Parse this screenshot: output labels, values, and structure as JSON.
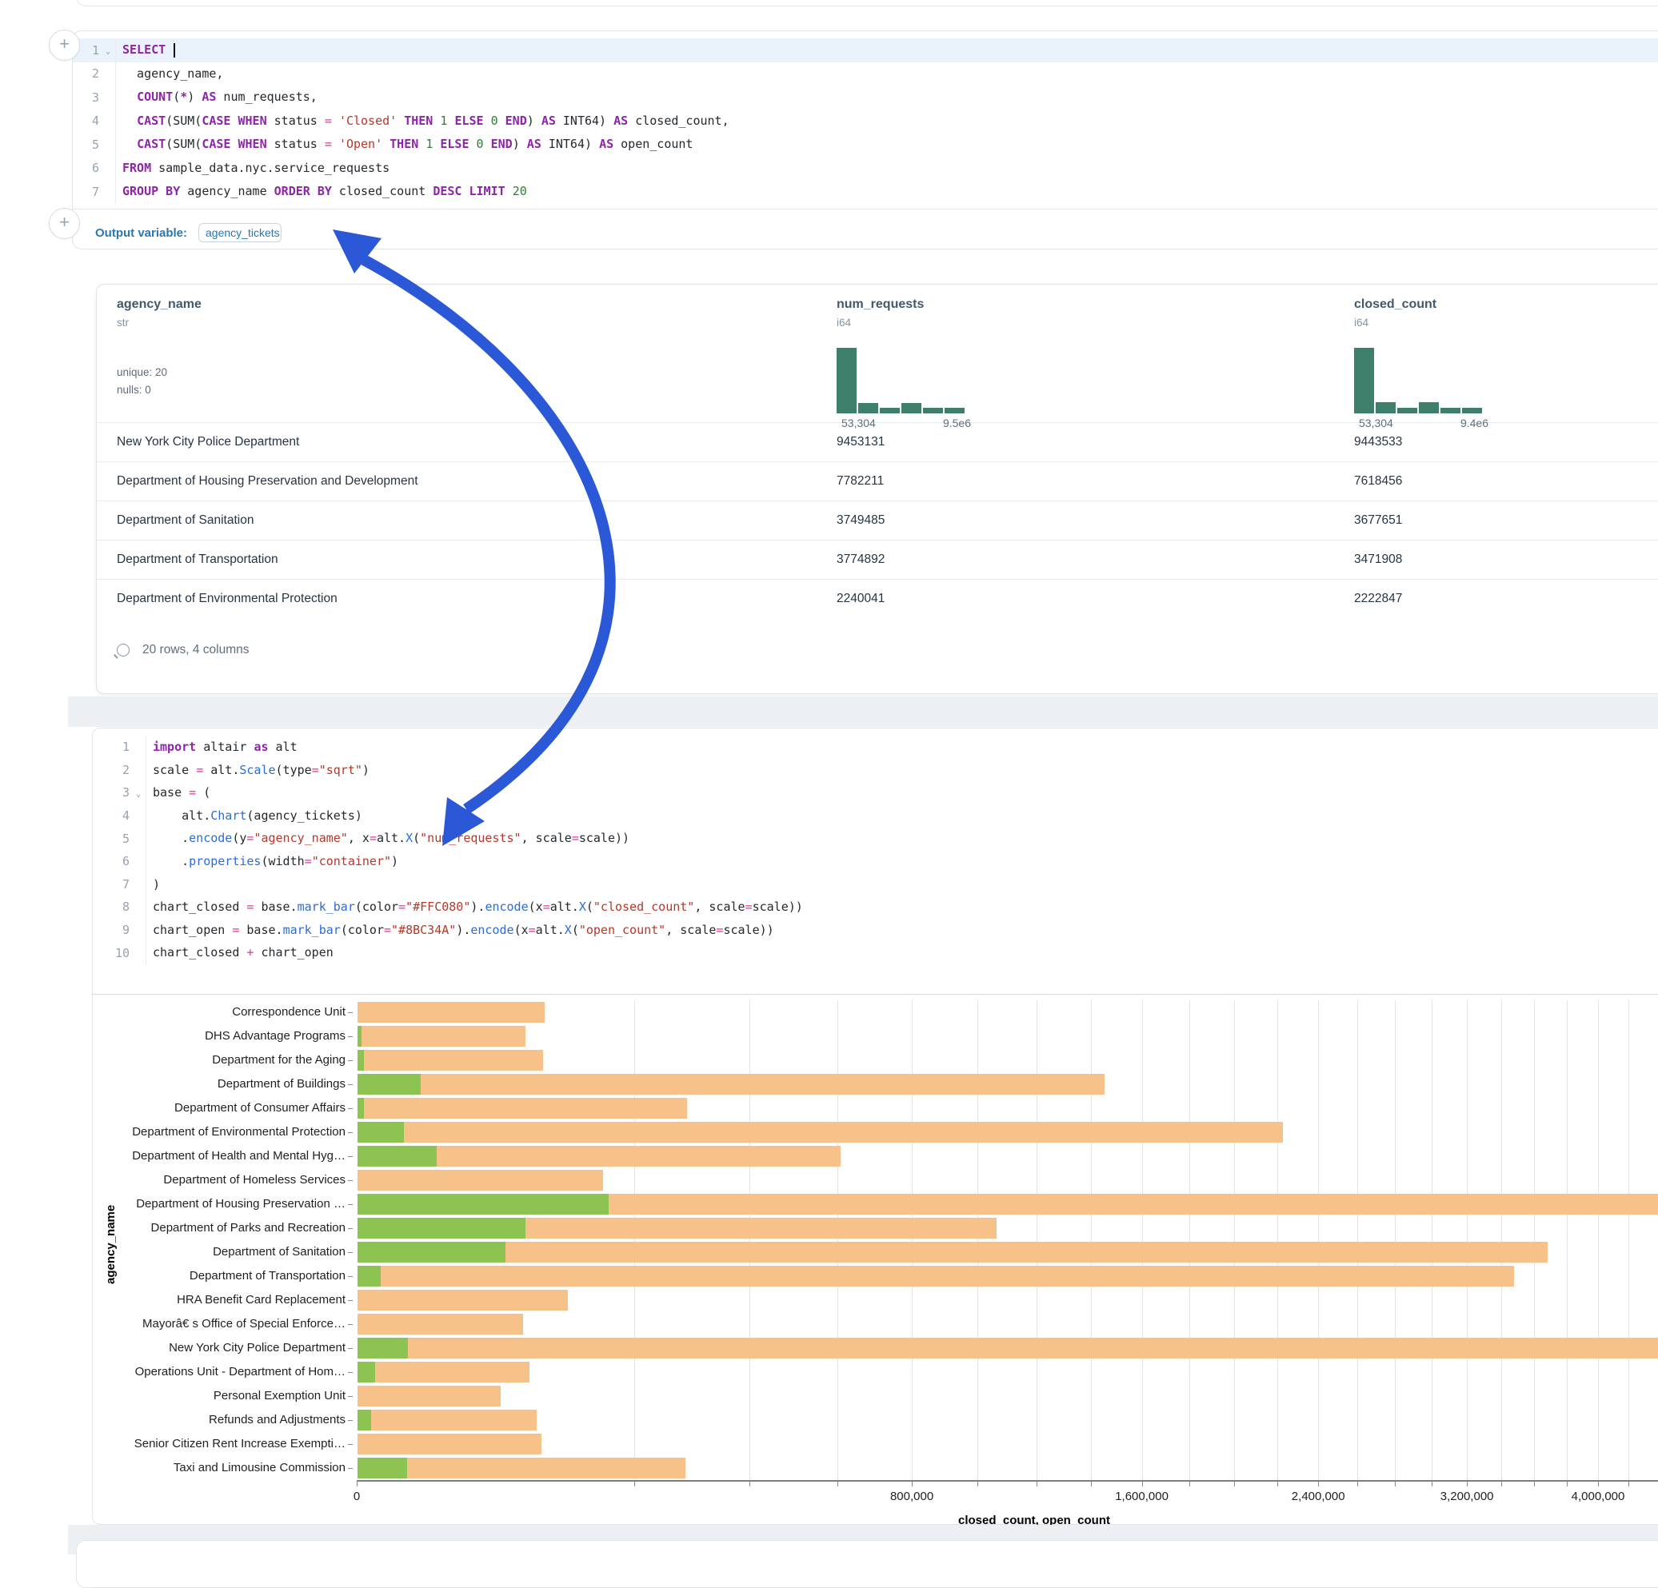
{
  "colors": {
    "accent_blue": "#2B58D6",
    "keyword": "#8E24A8",
    "string": "#B5382A",
    "number": "#2E7D32",
    "operator": "#D9399B",
    "method": "#2B6CD9",
    "histogram": "#3D7F6B",
    "bar_closed": "#F6C289",
    "bar_open": "#8DC451"
  },
  "add_buttons": {
    "label": "+"
  },
  "sql_cell": {
    "lines": [
      {
        "n": "1",
        "chev": true,
        "hl": true,
        "tokens": [
          [
            "k",
            "SELECT"
          ],
          [
            "d",
            " "
          ],
          [
            "caret",
            ""
          ]
        ]
      },
      {
        "n": "2",
        "tokens": [
          [
            "d",
            "  agency_name,"
          ]
        ]
      },
      {
        "n": "3",
        "tokens": [
          [
            "d",
            "  "
          ],
          [
            "k",
            "COUNT"
          ],
          [
            "d",
            "("
          ],
          [
            "k",
            "*"
          ],
          [
            "d",
            ") "
          ],
          [
            "k",
            "AS"
          ],
          [
            "d",
            " num_requests,"
          ]
        ]
      },
      {
        "n": "4",
        "tokens": [
          [
            "d",
            "  "
          ],
          [
            "k",
            "CAST"
          ],
          [
            "d",
            "(SUM("
          ],
          [
            "k",
            "CASE"
          ],
          [
            "d",
            " "
          ],
          [
            "k",
            "WHEN"
          ],
          [
            "d",
            " status "
          ],
          [
            "o",
            "="
          ],
          [
            "d",
            " "
          ],
          [
            "s",
            "'Closed'"
          ],
          [
            "d",
            " "
          ],
          [
            "k",
            "THEN"
          ],
          [
            "d",
            " "
          ],
          [
            "n",
            "1"
          ],
          [
            "d",
            " "
          ],
          [
            "k",
            "ELSE"
          ],
          [
            "d",
            " "
          ],
          [
            "n",
            "0"
          ],
          [
            "d",
            " "
          ],
          [
            "k",
            "END"
          ],
          [
            "d",
            ") "
          ],
          [
            "k",
            "AS"
          ],
          [
            "d",
            " INT64) "
          ],
          [
            "k",
            "AS"
          ],
          [
            "d",
            " closed_count,"
          ]
        ]
      },
      {
        "n": "5",
        "tokens": [
          [
            "d",
            "  "
          ],
          [
            "k",
            "CAST"
          ],
          [
            "d",
            "(SUM("
          ],
          [
            "k",
            "CASE"
          ],
          [
            "d",
            " "
          ],
          [
            "k",
            "WHEN"
          ],
          [
            "d",
            " status "
          ],
          [
            "o",
            "="
          ],
          [
            "d",
            " "
          ],
          [
            "s",
            "'Open'"
          ],
          [
            "d",
            " "
          ],
          [
            "k",
            "THEN"
          ],
          [
            "d",
            " "
          ],
          [
            "n",
            "1"
          ],
          [
            "d",
            " "
          ],
          [
            "k",
            "ELSE"
          ],
          [
            "d",
            " "
          ],
          [
            "n",
            "0"
          ],
          [
            "d",
            " "
          ],
          [
            "k",
            "END"
          ],
          [
            "d",
            ") "
          ],
          [
            "k",
            "AS"
          ],
          [
            "d",
            " INT64) "
          ],
          [
            "k",
            "AS"
          ],
          [
            "d",
            " open_count"
          ]
        ]
      },
      {
        "n": "6",
        "tokens": [
          [
            "k",
            "FROM"
          ],
          [
            "d",
            " sample_data.nyc.service_requests"
          ]
        ]
      },
      {
        "n": "7",
        "tokens": [
          [
            "k",
            "GROUP BY"
          ],
          [
            "d",
            " agency_name "
          ],
          [
            "k",
            "ORDER BY"
          ],
          [
            "d",
            " closed_count "
          ],
          [
            "k",
            "DESC"
          ],
          [
            "d",
            " "
          ],
          [
            "k",
            "LIMIT"
          ],
          [
            "d",
            " "
          ],
          [
            "n",
            "20"
          ]
        ]
      }
    ]
  },
  "output_variable": {
    "label": "Output variable:",
    "value": "agency_tickets"
  },
  "table": {
    "columns": [
      {
        "name": "agency_name",
        "type": "str",
        "stats": [
          "unique: 20",
          "nulls: 0"
        ]
      },
      {
        "name": "num_requests",
        "type": "i64",
        "hist": {
          "bars": [
            1,
            0.16,
            0.08,
            0.16,
            0.08,
            0.08
          ],
          "min": "53,304",
          "max": "9.5e6"
        }
      },
      {
        "name": "closed_count",
        "type": "i64",
        "hist": {
          "bars": [
            1,
            0.17,
            0.08,
            0.17,
            0.08,
            0.08
          ],
          "min": "53,304",
          "max": "9.4e6"
        }
      }
    ],
    "rows": [
      [
        "New York City Police Department",
        "9453131",
        "9443533"
      ],
      [
        "Department of Housing Preservation and Development",
        "7782211",
        "7618456"
      ],
      [
        "Department of Sanitation",
        "3749485",
        "3677651"
      ],
      [
        "Department of Transportation",
        "3774892",
        "3471908"
      ],
      [
        "Department of Environmental Protection",
        "2240041",
        "2222847"
      ]
    ],
    "footer": "20 rows, 4 columns"
  },
  "python_cell": {
    "lines": [
      {
        "n": "1",
        "tokens": [
          [
            "k",
            "import"
          ],
          [
            "d",
            " altair "
          ],
          [
            "k",
            "as"
          ],
          [
            "d",
            " alt"
          ]
        ]
      },
      {
        "n": "2",
        "tokens": [
          [
            "d",
            "scale "
          ],
          [
            "o",
            "="
          ],
          [
            "d",
            " alt."
          ],
          [
            "m",
            "Scale"
          ],
          [
            "d",
            "(type"
          ],
          [
            "o",
            "="
          ],
          [
            "s",
            "\"sqrt\""
          ],
          [
            "d",
            ")"
          ]
        ]
      },
      {
        "n": "3",
        "chev": true,
        "tokens": [
          [
            "d",
            "base "
          ],
          [
            "o",
            "="
          ],
          [
            "d",
            " ("
          ]
        ]
      },
      {
        "n": "4",
        "tokens": [
          [
            "d",
            "    alt."
          ],
          [
            "m",
            "Chart"
          ],
          [
            "d",
            "(agency_tickets)"
          ]
        ]
      },
      {
        "n": "5",
        "tokens": [
          [
            "d",
            "    ."
          ],
          [
            "m",
            "encode"
          ],
          [
            "d",
            "(y"
          ],
          [
            "o",
            "="
          ],
          [
            "s",
            "\"agency_name\""
          ],
          [
            "d",
            ", x"
          ],
          [
            "o",
            "="
          ],
          [
            "d",
            "alt."
          ],
          [
            "m",
            "X"
          ],
          [
            "d",
            "("
          ],
          [
            "s",
            "\"num_requests\""
          ],
          [
            "d",
            ", scale"
          ],
          [
            "o",
            "="
          ],
          [
            "d",
            "scale))"
          ]
        ]
      },
      {
        "n": "6",
        "tokens": [
          [
            "d",
            "    ."
          ],
          [
            "m",
            "properties"
          ],
          [
            "d",
            "(width"
          ],
          [
            "o",
            "="
          ],
          [
            "s",
            "\"container\""
          ],
          [
            "d",
            ")"
          ]
        ]
      },
      {
        "n": "7",
        "tokens": [
          [
            "d",
            ")"
          ]
        ]
      },
      {
        "n": "8",
        "tokens": [
          [
            "d",
            "chart_closed "
          ],
          [
            "o",
            "="
          ],
          [
            "d",
            " base."
          ],
          [
            "m",
            "mark_bar"
          ],
          [
            "d",
            "(color"
          ],
          [
            "o",
            "="
          ],
          [
            "s",
            "\"#FFC080\""
          ],
          [
            "d",
            ")."
          ],
          [
            "m",
            "encode"
          ],
          [
            "d",
            "(x"
          ],
          [
            "o",
            "="
          ],
          [
            "d",
            "alt."
          ],
          [
            "m",
            "X"
          ],
          [
            "d",
            "("
          ],
          [
            "s",
            "\"closed_count\""
          ],
          [
            "d",
            ", scale"
          ],
          [
            "o",
            "="
          ],
          [
            "d",
            "scale))"
          ]
        ]
      },
      {
        "n": "9",
        "tokens": [
          [
            "d",
            "chart_open "
          ],
          [
            "o",
            "="
          ],
          [
            "d",
            " base."
          ],
          [
            "m",
            "mark_bar"
          ],
          [
            "d",
            "(color"
          ],
          [
            "o",
            "="
          ],
          [
            "s",
            "\"#8BC34A\""
          ],
          [
            "d",
            ")."
          ],
          [
            "m",
            "encode"
          ],
          [
            "d",
            "(x"
          ],
          [
            "o",
            "="
          ],
          [
            "d",
            "alt."
          ],
          [
            "m",
            "X"
          ],
          [
            "d",
            "("
          ],
          [
            "s",
            "\"open_count\""
          ],
          [
            "d",
            ", scale"
          ],
          [
            "o",
            "="
          ],
          [
            "d",
            "scale))"
          ]
        ]
      },
      {
        "n": "10",
        "tokens": [
          [
            "d",
            "chart_closed "
          ],
          [
            "o",
            "+"
          ],
          [
            "d",
            " chart_open"
          ]
        ]
      }
    ]
  },
  "chart_data": {
    "type": "bar",
    "orientation": "horizontal",
    "x_scale": "sqrt",
    "title": "",
    "xlabel": "closed_count, open_count",
    "ylabel": "agency_name",
    "grid": true,
    "grid_step": 200000,
    "x_domain_visible": [
      0,
      4400000
    ],
    "x_ticks": [
      {
        "v": 0,
        "label": "0"
      },
      {
        "v": 800000,
        "label": "800,000"
      },
      {
        "v": 1600000,
        "label": "1,600,000"
      },
      {
        "v": 2400000,
        "label": "2,400,000"
      },
      {
        "v": 3200000,
        "label": "3,200,000"
      },
      {
        "v": 4000000,
        "label": "4,000,000"
      }
    ],
    "categories": [
      "Correspondence Unit",
      "DHS Advantage Programs",
      "Department for the Aging",
      "Department of Buildings",
      "Department of Consumer Affairs",
      "Department of Environmental Protection",
      "Department of Health and Mental Hyg…",
      "Department of Homeless Services",
      "Department of Housing Preservation …",
      "Department of Parks and Recreation",
      "Department of Sanitation",
      "Department of Transportation",
      "HRA Benefit Card Replacement",
      "Mayorâ€ s Office of Special Enforce…",
      "New York City Police Department",
      "Operations Unit - Department of Hom…",
      "Personal Exemption Unit",
      "Refunds and Adjustments",
      "Senior Citizen Rent Increase Exempti…",
      "Taxi and Limousine Commission"
    ],
    "series": [
      {
        "name": "closed_count",
        "color": "#F6C289",
        "values": [
          90800,
          73000,
          89200,
          1448000,
          282000,
          2222847,
          606000,
          157000,
          7618456,
          1061000,
          3677651,
          3471908,
          115000,
          71400,
          9443533,
          77000,
          53304,
          83400,
          87600,
          279500
        ]
      },
      {
        "name": "open_count",
        "color": "#8DC451",
        "values": [
          0,
          50,
          100,
          10400,
          100,
          5500,
          16400,
          0,
          163755,
          73000,
          57000,
          1400,
          0,
          0,
          6500,
          800,
          0,
          500,
          0,
          6400
        ]
      }
    ]
  }
}
